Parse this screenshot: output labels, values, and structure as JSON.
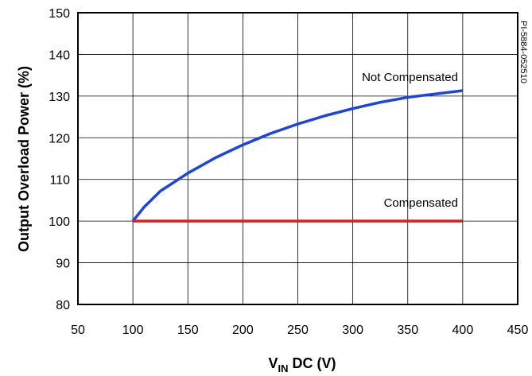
{
  "chart_data": {
    "type": "line",
    "title": "",
    "xlabel": {
      "main": "V",
      "sub": "IN",
      "rest": " DC (V)"
    },
    "ylabel": "Output Overload Power (%)",
    "xlim": [
      50,
      450
    ],
    "ylim": [
      80,
      150
    ],
    "x_ticks": [
      50,
      100,
      150,
      200,
      250,
      300,
      350,
      400,
      450
    ],
    "y_ticks": [
      80,
      90,
      100,
      110,
      120,
      130,
      140,
      150
    ],
    "grid": true,
    "series": [
      {
        "name": "Not Compensated",
        "color": "#1a44e6",
        "x": [
          100,
          110,
          125,
          150,
          175,
          200,
          225,
          250,
          275,
          300,
          325,
          350,
          375,
          400
        ],
        "y": [
          100,
          103.3,
          107.2,
          111.5,
          115.2,
          118.3,
          121.0,
          123.3,
          125.3,
          127.0,
          128.5,
          129.7,
          130.5,
          131.3
        ]
      },
      {
        "name": "Compensated",
        "color": "#e8191b",
        "x": [
          100,
          400
        ],
        "y": [
          100,
          100
        ]
      }
    ],
    "annotations": {
      "figure_code": "PI-5884-052510"
    }
  }
}
